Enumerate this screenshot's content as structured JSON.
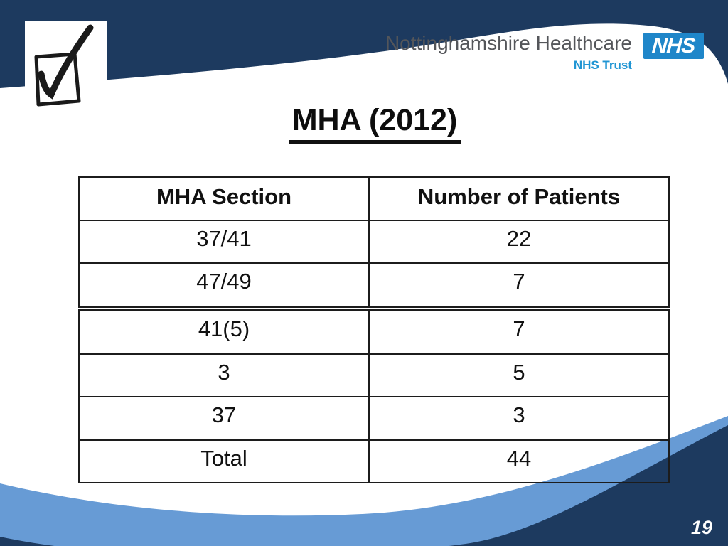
{
  "slide": {
    "title": "MHA (2012)",
    "page_number": "19"
  },
  "header": {
    "org_name": "Nottinghamshire Healthcare",
    "trust_label": "NHS Trust",
    "nhs_logo_text": "NHS"
  },
  "table": {
    "columns": [
      "MHA Section",
      "Number of Patients"
    ],
    "rows": [
      [
        "37/41",
        "22"
      ],
      [
        "47/49",
        "7"
      ],
      [
        "41(5)",
        "7"
      ],
      [
        "3",
        "5"
      ],
      [
        "37",
        "3"
      ],
      [
        "Total",
        "44"
      ]
    ],
    "separator_before_row_index": 2
  },
  "colors": {
    "navy": "#1d3a5f",
    "light_blue": "#679bd5",
    "nhs_blue": "#1f86c9",
    "org_text": "#54565a",
    "trust_text": "#2095d3",
    "table_border": "#1c1c1c"
  }
}
